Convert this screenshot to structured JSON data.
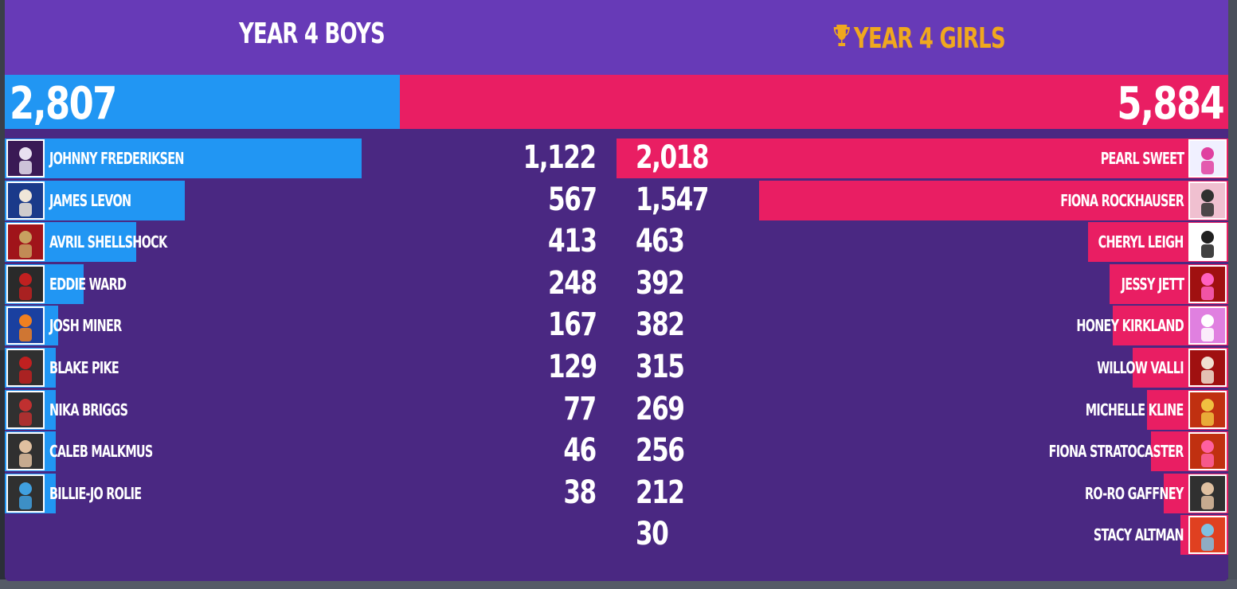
{
  "colors": {
    "header_bg": "#673ab7",
    "board_bg": "#4a2882",
    "boys_bar": "#2196f3",
    "girls_bar": "#e91e63",
    "winner_title": "#f0a81e",
    "text": "#ffffff"
  },
  "teams": {
    "boys": {
      "title": "YEAR 4 BOYS",
      "total": "2,807",
      "total_value": 2807
    },
    "girls": {
      "title": "YEAR 4 GIRLS",
      "total": "5,884",
      "total_value": 5884,
      "winner_icon": "trophy-icon"
    }
  },
  "boys": [
    {
      "name": "JOHNNY FREDERIKSEN",
      "score": "1,122",
      "value": 1122,
      "avatar_colors": [
        "#3a1a55",
        "#e8e0f0"
      ]
    },
    {
      "name": "JAMES LEVON",
      "score": "567",
      "value": 567,
      "avatar_colors": [
        "#1a3a8a",
        "#f0e6d8"
      ]
    },
    {
      "name": "AVRIL SHELLSHOCK",
      "score": "413",
      "value": 413,
      "avatar_colors": [
        "#a0141a",
        "#c8a060"
      ]
    },
    {
      "name": "EDDIE WARD",
      "score": "248",
      "value": 248,
      "avatar_colors": [
        "#2a2a2a",
        "#c02020"
      ]
    },
    {
      "name": "JOSH MINER",
      "score": "167",
      "value": 167,
      "avatar_colors": [
        "#1a40a0",
        "#f08020"
      ]
    },
    {
      "name": "BLAKE PIKE",
      "score": "129",
      "value": 129,
      "avatar_colors": [
        "#303030",
        "#c02020"
      ]
    },
    {
      "name": "NIKA BRIGGS",
      "score": "77",
      "value": 77,
      "avatar_colors": [
        "#303030",
        "#c03030"
      ]
    },
    {
      "name": "CALEB MALKMUS",
      "score": "46",
      "value": 46,
      "avatar_colors": [
        "#303030",
        "#e0c0a0"
      ]
    },
    {
      "name": "BILLIE-JO ROLIE",
      "score": "38",
      "value": 38,
      "avatar_colors": [
        "#303030",
        "#40a0e0"
      ]
    }
  ],
  "girls": [
    {
      "name": "PEARL SWEET",
      "score": "2,018",
      "value": 2018,
      "avatar_colors": [
        "#f0f0ff",
        "#e040a0"
      ]
    },
    {
      "name": "FIONA ROCKHAUSER",
      "score": "1,547",
      "value": 1547,
      "avatar_colors": [
        "#f0c0d0",
        "#303030"
      ]
    },
    {
      "name": "CHERYL LEIGH",
      "score": "463",
      "value": 463,
      "avatar_colors": [
        "#ffffff",
        "#202020"
      ]
    },
    {
      "name": "JESSY JETT",
      "score": "392",
      "value": 392,
      "avatar_colors": [
        "#a01010",
        "#ff60c0"
      ]
    },
    {
      "name": "HONEY KIRKLAND",
      "score": "382",
      "value": 382,
      "avatar_colors": [
        "#e080e0",
        "#ffffff"
      ]
    },
    {
      "name": "WILLOW VALLI",
      "score": "315",
      "value": 315,
      "avatar_colors": [
        "#a01010",
        "#f0e0d0"
      ]
    },
    {
      "name": "MICHELLE KLINE",
      "score": "269",
      "value": 269,
      "avatar_colors": [
        "#c03010",
        "#f0c040"
      ]
    },
    {
      "name": "FIONA STRATOCASTER",
      "score": "256",
      "value": 256,
      "avatar_colors": [
        "#c03010",
        "#ff60a0"
      ]
    },
    {
      "name": "RO-RO GAFFNEY",
      "score": "212",
      "value": 212,
      "avatar_colors": [
        "#303030",
        "#e0c0a0"
      ]
    },
    {
      "name": "STACY ALTMAN",
      "score": "30",
      "value": 30,
      "avatar_colors": [
        "#e04020",
        "#80c0e0"
      ]
    }
  ]
}
